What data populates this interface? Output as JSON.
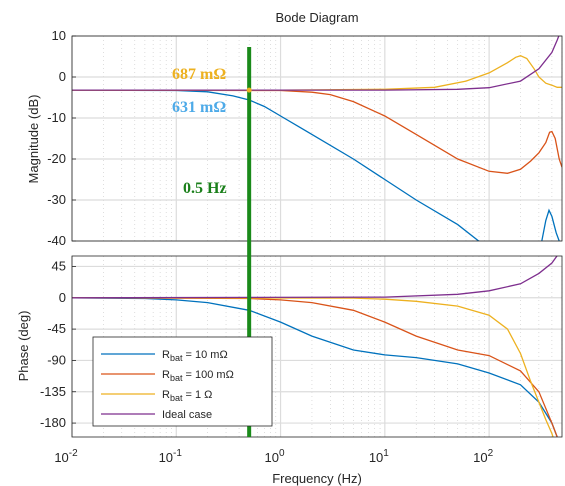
{
  "chart_data": {
    "type": "line",
    "title": "Bode Diagram",
    "xlabel": "Frequency  (Hz)",
    "xscale": "log",
    "xlim": [
      0.01,
      500
    ],
    "x_ticks": [
      {
        "base": "10",
        "exp": "-2"
      },
      {
        "base": "10",
        "exp": "-1"
      },
      {
        "base": "10",
        "exp": "0"
      },
      {
        "base": "10",
        "exp": "1"
      },
      {
        "base": "10",
        "exp": "2"
      }
    ],
    "grid": true,
    "legend_position": "bottom-left of phase plot",
    "panels": {
      "magnitude": {
        "ylabel": "Magnitude (dB)",
        "ylim": [
          -40,
          10
        ],
        "yticks": [
          "10",
          "0",
          "-10",
          "-20",
          "-30",
          "-40"
        ]
      },
      "phase": {
        "ylabel": "Phase (deg)",
        "ylim": [
          -200,
          60
        ],
        "yticks": [
          "45",
          "0",
          "-45",
          "-90",
          "-135",
          "-180"
        ]
      }
    },
    "series": [
      {
        "legend_main": "R",
        "legend_sub": "bat",
        "legend_rest": " = 10 mΩ",
        "color": "#0072bd",
        "magnitude": [
          [
            0.01,
            -3.2
          ],
          [
            0.1,
            -3.3
          ],
          [
            0.2,
            -3.6
          ],
          [
            0.35,
            -4.6
          ],
          [
            0.5,
            -5.6
          ],
          [
            0.7,
            -7.2
          ],
          [
            1,
            -9.5
          ],
          [
            2,
            -14
          ],
          [
            5,
            -20
          ],
          [
            10,
            -25
          ],
          [
            20,
            -30
          ],
          [
            50,
            -36
          ],
          [
            100,
            -42
          ]
        ],
        "magnitude_peak": [
          [
            320,
            -40
          ],
          [
            350,
            -35
          ],
          [
            375,
            -32.5
          ],
          [
            400,
            -34
          ],
          [
            440,
            -38
          ],
          [
            470,
            -40
          ]
        ],
        "phase": [
          [
            0.01,
            0
          ],
          [
            0.05,
            -1
          ],
          [
            0.1,
            -3
          ],
          [
            0.2,
            -7
          ],
          [
            0.5,
            -18
          ],
          [
            1,
            -35
          ],
          [
            2,
            -55
          ],
          [
            5,
            -75
          ],
          [
            10,
            -82
          ],
          [
            20,
            -86
          ],
          [
            50,
            -95
          ],
          [
            100,
            -108
          ],
          [
            200,
            -125
          ],
          [
            300,
            -150
          ],
          [
            400,
            -180
          ],
          [
            450,
            -200
          ]
        ]
      },
      {
        "legend_main": "R",
        "legend_sub": "bat",
        "legend_rest": " = 100 mΩ",
        "color": "#d95319",
        "magnitude": [
          [
            0.01,
            -3.2
          ],
          [
            1,
            -3.3
          ],
          [
            2,
            -3.7
          ],
          [
            3,
            -4.3
          ],
          [
            5,
            -6
          ],
          [
            10,
            -9.5
          ],
          [
            20,
            -14
          ],
          [
            50,
            -20
          ],
          [
            100,
            -23
          ],
          [
            150,
            -23.5
          ],
          [
            200,
            -22.5
          ],
          [
            250,
            -20.5
          ],
          [
            300,
            -18.5
          ],
          [
            350,
            -16
          ],
          [
            380,
            -13.5
          ],
          [
            400,
            -13.3
          ],
          [
            430,
            -15
          ],
          [
            470,
            -20
          ],
          [
            500,
            -22
          ]
        ],
        "phase": [
          [
            0.01,
            0
          ],
          [
            0.5,
            -1
          ],
          [
            1,
            -3
          ],
          [
            2,
            -7
          ],
          [
            5,
            -18
          ],
          [
            10,
            -35
          ],
          [
            20,
            -55
          ],
          [
            50,
            -75
          ],
          [
            100,
            -83
          ],
          [
            200,
            -105
          ],
          [
            300,
            -135
          ],
          [
            400,
            -180
          ],
          [
            450,
            -200
          ]
        ]
      },
      {
        "legend_main": "R",
        "legend_sub": "bat",
        "legend_rest": " = 1 Ω",
        "color": "#edb120",
        "magnitude": [
          [
            0.01,
            -3.2
          ],
          [
            1,
            -3.2
          ],
          [
            10,
            -3
          ],
          [
            30,
            -2.5
          ],
          [
            60,
            -1
          ],
          [
            100,
            1
          ],
          [
            150,
            3.5
          ],
          [
            180,
            4.8
          ],
          [
            200,
            5.2
          ],
          [
            230,
            4.5
          ],
          [
            270,
            2
          ],
          [
            300,
            0
          ],
          [
            350,
            -1.5
          ],
          [
            400,
            -2
          ],
          [
            450,
            -2.5
          ],
          [
            500,
            -2.5
          ]
        ],
        "phase": [
          [
            0.01,
            0
          ],
          [
            5,
            -0.5
          ],
          [
            10,
            -2
          ],
          [
            20,
            -5
          ],
          [
            50,
            -12
          ],
          [
            100,
            -25
          ],
          [
            150,
            -45
          ],
          [
            200,
            -80
          ],
          [
            250,
            -120
          ],
          [
            300,
            -150
          ],
          [
            350,
            -175
          ],
          [
            400,
            -195
          ],
          [
            430,
            -210
          ]
        ]
      },
      {
        "legend_main": "Ideal case",
        "color": "#7e2f8e",
        "magnitude": [
          [
            0.01,
            -3.2
          ],
          [
            10,
            -3.2
          ],
          [
            50,
            -3
          ],
          [
            100,
            -2.6
          ],
          [
            200,
            -1
          ],
          [
            300,
            2
          ],
          [
            400,
            6
          ],
          [
            450,
            9
          ],
          [
            500,
            12
          ]
        ],
        "phase": [
          [
            0.01,
            0
          ],
          [
            10,
            1
          ],
          [
            50,
            5
          ],
          [
            100,
            10
          ],
          [
            200,
            20
          ],
          [
            300,
            35
          ],
          [
            400,
            50
          ],
          [
            500,
            70
          ]
        ]
      }
    ],
    "annotations": [
      {
        "text": "687 mΩ",
        "color": "#edb120"
      },
      {
        "text": "631 mΩ",
        "color": "#4daae8"
      },
      {
        "text": "0.5 Hz",
        "color": "#1a7f1a"
      }
    ],
    "marker_frequency_hz": 0.5,
    "marker_color": "#1a8a1a"
  }
}
